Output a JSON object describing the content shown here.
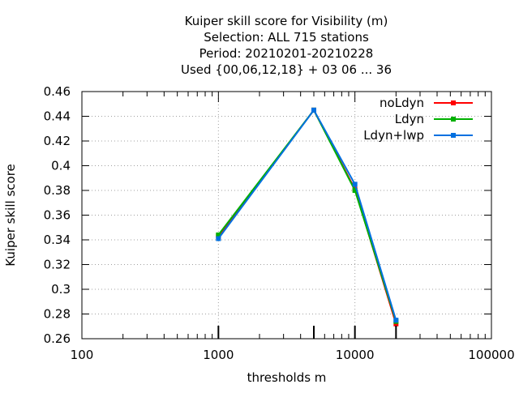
{
  "chart_data": {
    "type": "line",
    "title_lines": [
      "Kuiper skill score  for Visibility (m)",
      "Selection: ALL     715 stations",
      "Period: 20210201-20210228",
      "Used {00,06,12,18} + 03 06 ... 36"
    ],
    "xlabel": "thresholds m",
    "ylabel": "Kuiper skill score",
    "x_scale": "log",
    "xlim": [
      100,
      100000
    ],
    "ylim": [
      0.26,
      0.46
    ],
    "x_ticks": [
      100,
      1000,
      10000,
      100000
    ],
    "x_tick_labels": [
      "100",
      "1000",
      "10000",
      "100000"
    ],
    "y_ticks": [
      0.26,
      0.28,
      0.3,
      0.32,
      0.34,
      0.36,
      0.38,
      0.4,
      0.42,
      0.44,
      0.46
    ],
    "y_tick_labels": [
      "0.26",
      "0.28",
      "0.3",
      "0.32",
      "0.34",
      "0.36",
      "0.38",
      "0.4",
      "0.42",
      "0.44",
      "0.46"
    ],
    "grid": true,
    "legend_position": "top-right",
    "x": [
      1000,
      5000,
      10000,
      20000
    ],
    "series": [
      {
        "name": "noLdyn",
        "color": "#ff0000",
        "values": [
          0.343,
          0.445,
          0.381,
          0.272
        ]
      },
      {
        "name": "Ldyn",
        "color": "#00b000",
        "values": [
          0.344,
          0.445,
          0.38,
          0.274
        ]
      },
      {
        "name": "Ldyn+lwp",
        "color": "#0070e0",
        "values": [
          0.341,
          0.445,
          0.385,
          0.275
        ]
      }
    ]
  }
}
